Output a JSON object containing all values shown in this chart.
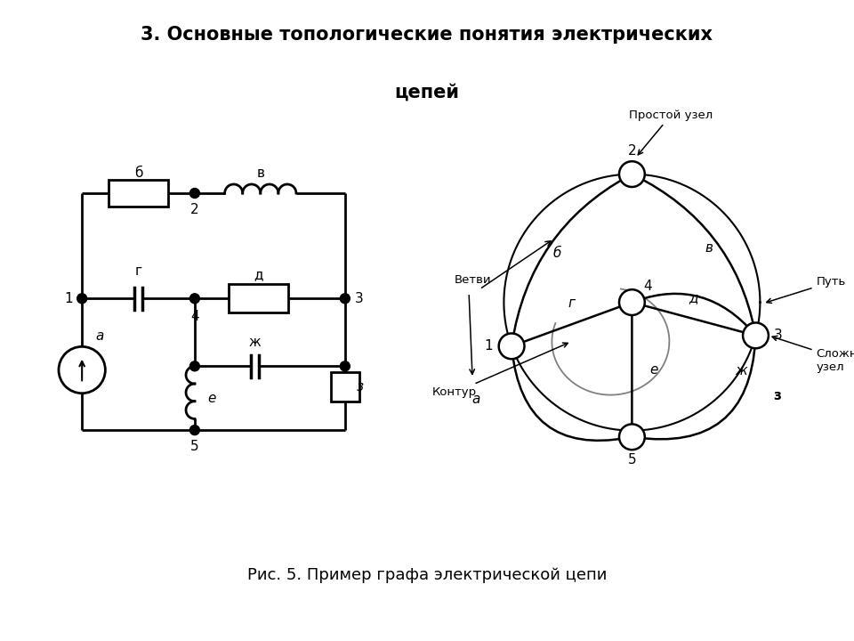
{
  "title_line1": "3. Основные топологические понятия электрических",
  "title_line2": "цепей",
  "caption": "Рис. 5. Пример графа электрической цепи",
  "bg_color": "#ffffff",
  "text_color": "#000000",
  "node_labels": [
    "1",
    "2",
    "3",
    "4",
    "5"
  ],
  "branch_labels": [
    "а",
    "б",
    "в",
    "г",
    "д",
    "е",
    "ж",
    "з"
  ],
  "annotation_labels": [
    "Простой узел",
    "Путь",
    "Сложный\nузел",
    "Ветви",
    "Контур"
  ]
}
